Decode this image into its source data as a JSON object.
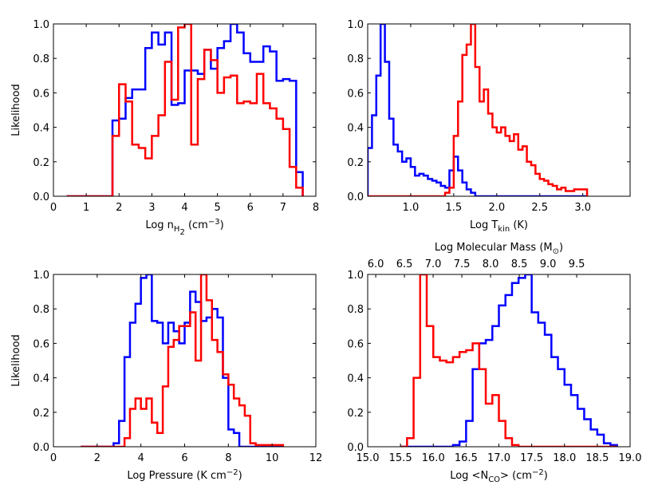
{
  "chart_data": [
    {
      "type": "histogram",
      "xlabel": [
        "Log n",
        "H",
        "2",
        " (cm",
        "−3",
        ")"
      ],
      "ylabel": "Likelihood",
      "xlim": [
        0,
        8
      ],
      "xticks": [
        0,
        1,
        2,
        3,
        4,
        5,
        6,
        7,
        8
      ],
      "ylim": [
        0,
        1
      ],
      "yticks": [
        {
          "value": 0,
          "label": "0.0"
        },
        {
          "value": 0.2,
          "label": "0.2"
        },
        {
          "value": 0.4,
          "label": "0.4"
        },
        {
          "value": 0.6,
          "label": "0.6"
        },
        {
          "value": 0.8,
          "label": "0.8"
        },
        {
          "value": 1,
          "label": "1.0"
        }
      ],
      "bins": [
        0.4,
        0.6,
        0.8,
        1.0,
        1.2,
        1.4,
        1.6,
        1.8,
        2.0,
        2.2,
        2.4,
        2.6,
        2.8,
        3.0,
        3.2,
        3.4,
        3.6,
        3.8,
        4.0,
        4.2,
        4.4,
        4.6,
        4.8,
        5.0,
        5.2,
        5.4,
        5.6,
        5.8,
        6.0,
        6.2,
        6.4,
        6.6,
        6.8,
        7.0,
        7.2,
        7.4,
        7.6
      ],
      "series": [
        {
          "color": "#0000ff",
          "values": [
            0,
            0,
            0,
            0,
            0,
            0,
            0,
            0.44,
            0.45,
            0.57,
            0.62,
            0.62,
            0.86,
            0.95,
            0.88,
            0.95,
            0.53,
            0.54,
            0.73,
            0.73,
            0.71,
            0.85,
            0.74,
            0.86,
            0.9,
            1.0,
            0.95,
            0.83,
            0.78,
            0.78,
            0.87,
            0.84,
            0.67,
            0.68,
            0.67,
            0.14
          ]
        },
        {
          "color": "#ff0000",
          "values": [
            0,
            0,
            0,
            0,
            0,
            0,
            0,
            0.35,
            0.65,
            0.55,
            0.3,
            0.28,
            0.22,
            0.35,
            0.47,
            0.78,
            0.56,
            0.98,
            1.0,
            0.3,
            0.68,
            0.85,
            0.79,
            0.6,
            0.69,
            0.7,
            0.54,
            0.55,
            0.54,
            0.71,
            0.54,
            0.51,
            0.45,
            0.39,
            0.17,
            0.05
          ]
        }
      ]
    },
    {
      "type": "histogram",
      "xlabel": [
        "Log T",
        "kin",
        " (K)"
      ],
      "xlim": [
        0.5,
        3.55
      ],
      "xticks": [
        {
          "value": 1,
          "label": "1.0"
        },
        {
          "value": 1.5,
          "label": "1.5"
        },
        {
          "value": 2,
          "label": "2.0"
        },
        {
          "value": 2.5,
          "label": "2.5"
        },
        {
          "value": 3,
          "label": "3.0"
        }
      ],
      "ylim": [
        0,
        1
      ],
      "yticks": [
        {
          "value": 0,
          "label": "0.0"
        },
        {
          "value": 0.2,
          "label": "0.2"
        },
        {
          "value": 0.4,
          "label": "0.4"
        },
        {
          "value": 0.6,
          "label": "0.6"
        },
        {
          "value": 0.8,
          "label": "0.8"
        },
        {
          "value": 1,
          "label": "1.0"
        }
      ],
      "bins": [
        0.5,
        0.55,
        0.6,
        0.65,
        0.7,
        0.75,
        0.8,
        0.85,
        0.9,
        0.95,
        1.0,
        1.05,
        1.1,
        1.15,
        1.2,
        1.25,
        1.3,
        1.35,
        1.4,
        1.45,
        1.5,
        1.55,
        1.6,
        1.65,
        1.7,
        1.75,
        1.8,
        1.85,
        1.9,
        1.95,
        2.0,
        2.05,
        2.1,
        2.15,
        2.2,
        2.25,
        2.3,
        2.35,
        2.4,
        2.45,
        2.5,
        2.55,
        2.6,
        2.65,
        2.7,
        2.75,
        2.8,
        2.85,
        2.9,
        2.95,
        3.0,
        3.05
      ],
      "series": [
        {
          "color": "#0000ff",
          "values": [
            0.28,
            0.47,
            0.7,
            1.0,
            0.78,
            0.45,
            0.3,
            0.26,
            0.2,
            0.22,
            0.17,
            0.12,
            0.13,
            0.12,
            0.1,
            0.09,
            0.08,
            0.06,
            0.05,
            0.15,
            0.23,
            0.15,
            0.08,
            0.04,
            0.02,
            0,
            0,
            0,
            0,
            0,
            0,
            0,
            0,
            0,
            0,
            0,
            0,
            0,
            0,
            0,
            0,
            0,
            0,
            0,
            0,
            0,
            0,
            0,
            0,
            0,
            0
          ]
        },
        {
          "color": "#ff0000",
          "values": [
            0,
            0,
            0,
            0,
            0,
            0,
            0,
            0,
            0,
            0,
            0,
            0,
            0,
            0,
            0,
            0,
            0,
            0,
            0.02,
            0.05,
            0.35,
            0.55,
            0.82,
            0.88,
            1.0,
            0.75,
            0.55,
            0.62,
            0.48,
            0.4,
            0.37,
            0.4,
            0.35,
            0.32,
            0.36,
            0.27,
            0.29,
            0.2,
            0.18,
            0.13,
            0.1,
            0.09,
            0.07,
            0.06,
            0.04,
            0.05,
            0.03,
            0.03,
            0.04,
            0.04,
            0.04
          ]
        }
      ]
    },
    {
      "type": "histogram",
      "xlabel": [
        "Log Pressure (K cm",
        "−2",
        ")"
      ],
      "ylabel": "Likelihood",
      "xlim": [
        0,
        12
      ],
      "xticks": [
        0,
        2,
        4,
        6,
        8,
        10,
        12
      ],
      "ylim": [
        0,
        1
      ],
      "yticks": [
        {
          "value": 0,
          "label": "0.0"
        },
        {
          "value": 0.2,
          "label": "0.2"
        },
        {
          "value": 0.4,
          "label": "0.4"
        },
        {
          "value": 0.6,
          "label": "0.6"
        },
        {
          "value": 0.8,
          "label": "0.8"
        },
        {
          "value": 1,
          "label": "1.0"
        }
      ],
      "bins": [
        1.25,
        1.5,
        1.75,
        2.0,
        2.25,
        2.5,
        2.75,
        3.0,
        3.25,
        3.5,
        3.75,
        4.0,
        4.25,
        4.5,
        4.75,
        5.0,
        5.25,
        5.5,
        5.75,
        6.0,
        6.25,
        6.5,
        6.75,
        7.0,
        7.25,
        7.5,
        7.75,
        8.0,
        8.25,
        8.5,
        8.75,
        9.0,
        9.25,
        9.5,
        9.75,
        10.0,
        10.25,
        10.5
      ],
      "series": [
        {
          "color": "#0000ff",
          "values": [
            0,
            0,
            0,
            0,
            0,
            0,
            0.02,
            0.15,
            0.52,
            0.72,
            0.83,
            0.98,
            1.0,
            0.73,
            0.72,
            0.6,
            0.72,
            0.67,
            0.6,
            0.72,
            0.9,
            0.84,
            0.73,
            0.75,
            0.8,
            0.75,
            0.4,
            0.1,
            0.08,
            0,
            0,
            0,
            0,
            0,
            0,
            0,
            0
          ]
        },
        {
          "color": "#ff0000",
          "values": [
            0,
            0,
            0,
            0,
            0,
            0,
            0,
            0,
            0.05,
            0.22,
            0.28,
            0.22,
            0.28,
            0.14,
            0.08,
            0.35,
            0.58,
            0.62,
            0.7,
            0.7,
            0.78,
            0.5,
            1.0,
            0.85,
            0.62,
            0.55,
            0.42,
            0.36,
            0.28,
            0.24,
            0.18,
            0.02,
            0.01,
            0.01,
            0.01,
            0.01,
            0.01
          ]
        }
      ]
    },
    {
      "type": "histogram",
      "xlabel": [
        "Log <N",
        "CO",
        "> (cm",
        "−2",
        ")"
      ],
      "x2label": [
        "Log Molecular Mass (M",
        "⊙",
        ")"
      ],
      "xlim": [
        15,
        19
      ],
      "xticks": [
        {
          "value": 15,
          "label": "15.0"
        },
        {
          "value": 15.5,
          "label": "15.5"
        },
        {
          "value": 16,
          "label": "16.0"
        },
        {
          "value": 16.5,
          "label": "16.5"
        },
        {
          "value": 17,
          "label": "17.0"
        },
        {
          "value": 17.5,
          "label": "17.5"
        },
        {
          "value": 18,
          "label": "18.0"
        },
        {
          "value": 18.5,
          "label": "18.5"
        },
        {
          "value": 19,
          "label": "19.0"
        }
      ],
      "x2lim": [
        5.86,
        10.43
      ],
      "x2ticks": [
        {
          "value": 6,
          "label": "6.0"
        },
        {
          "value": 6.5,
          "label": "6.5"
        },
        {
          "value": 7,
          "label": "7.0"
        },
        {
          "value": 7.5,
          "label": "7.5"
        },
        {
          "value": 8,
          "label": "8.0"
        },
        {
          "value": 8.5,
          "label": "8.5"
        },
        {
          "value": 9,
          "label": "9.0"
        },
        {
          "value": 9.5,
          "label": "9.5"
        }
      ],
      "ylim": [
        0,
        1
      ],
      "yticks": [
        {
          "value": 0,
          "label": "0.0"
        },
        {
          "value": 0.2,
          "label": "0.2"
        },
        {
          "value": 0.4,
          "label": "0.4"
        },
        {
          "value": 0.6,
          "label": "0.6"
        },
        {
          "value": 0.8,
          "label": "0.8"
        },
        {
          "value": 1,
          "label": "1.0"
        }
      ],
      "bins": [
        15.5,
        15.6,
        15.7,
        15.8,
        15.9,
        16.0,
        16.1,
        16.2,
        16.3,
        16.4,
        16.5,
        16.6,
        16.7,
        16.8,
        16.9,
        17.0,
        17.1,
        17.2,
        17.3,
        17.4,
        17.5,
        17.6,
        17.7,
        17.8,
        17.9,
        18.0,
        18.1,
        18.2,
        18.3,
        18.4,
        18.5,
        18.6,
        18.7,
        18.8
      ],
      "series": [
        {
          "color": "#0000ff",
          "values": [
            0,
            0,
            0,
            0,
            0,
            0,
            0,
            0,
            0.01,
            0.03,
            0.15,
            0.45,
            0.6,
            0.62,
            0.7,
            0.82,
            0.88,
            0.95,
            0.98,
            1.0,
            0.78,
            0.72,
            0.65,
            0.52,
            0.45,
            0.36,
            0.3,
            0.22,
            0.16,
            0.1,
            0.07,
            0.02,
            0.01
          ]
        },
        {
          "color": "#ff0000",
          "values": [
            0,
            0.05,
            0.4,
            1.0,
            0.7,
            0.52,
            0.5,
            0.49,
            0.52,
            0.55,
            0.56,
            0.6,
            0.45,
            0.25,
            0.3,
            0.15,
            0.05,
            0.01,
            0,
            0,
            0,
            0,
            0,
            0,
            0,
            0,
            0,
            0,
            0,
            0,
            0,
            0,
            0
          ]
        }
      ]
    }
  ]
}
